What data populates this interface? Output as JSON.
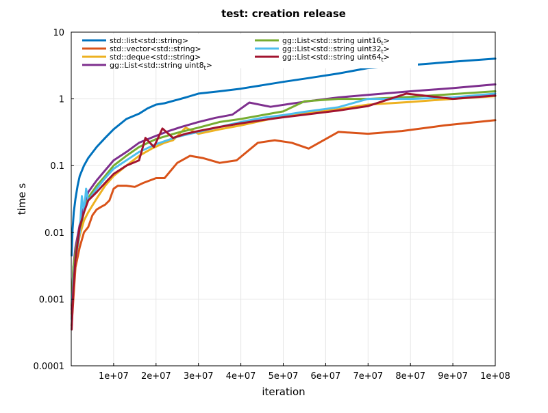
{
  "chart_data": {
    "type": "line",
    "title": "test: creation release",
    "xlabel": "iteration",
    "ylabel": "time s",
    "xlim": [
      0,
      100000000
    ],
    "ylim": [
      0.0001,
      10
    ],
    "yscale": "log",
    "grid": true,
    "legend_position": "top-left",
    "x_ticks": [
      10000000,
      20000000,
      30000000,
      40000000,
      50000000,
      60000000,
      70000000,
      80000000,
      90000000,
      100000000
    ],
    "x_tick_labels": [
      "1e+07",
      "2e+07",
      "3e+07",
      "4e+07",
      "5e+07",
      "6e+07",
      "7e+07",
      "8e+07",
      "9e+07",
      "1e+08"
    ],
    "y_ticks": [
      0.0001,
      0.001,
      0.01,
      0.1,
      1,
      10
    ],
    "y_tick_labels": [
      "0.0001",
      "0.001",
      "0.01",
      "0.1",
      "1",
      "10"
    ],
    "series": [
      {
        "name": "std::list<std::string>",
        "legend_main": "std::list<std::string>",
        "legend_sub": "",
        "legend_tail": "",
        "color": "#0072bd",
        "x": [
          100000,
          300000,
          600000,
          1000000,
          1500000,
          2000000,
          3000000,
          4000000,
          6000000,
          8000000,
          10000000,
          13000000,
          16000000,
          18000000,
          20000000,
          22000000,
          25000000,
          27000000,
          30000000,
          35000000,
          40000000,
          45000000,
          50000000,
          56000000,
          63000000,
          70000000,
          80000000,
          90000000,
          100000000
        ],
        "y": [
          0.0045,
          0.011,
          0.02,
          0.032,
          0.05,
          0.07,
          0.1,
          0.13,
          0.19,
          0.26,
          0.35,
          0.5,
          0.6,
          0.72,
          0.82,
          0.86,
          0.97,
          1.05,
          1.2,
          1.3,
          1.42,
          1.6,
          1.8,
          2.05,
          2.4,
          2.9,
          3.2,
          3.6,
          4.0
        ]
      },
      {
        "name": "std::vector<std::string>",
        "legend_main": "std::vector<std::string>",
        "legend_sub": "",
        "legend_tail": "",
        "color": "#d95319",
        "x": [
          100000,
          500000,
          1000000,
          2000000,
          3000000,
          4000000,
          5000000,
          6000000,
          7000000,
          8000000,
          9000000,
          10000000,
          11000000,
          13000000,
          15000000,
          17000000,
          20000000,
          22000000,
          25000000,
          28000000,
          31000000,
          35000000,
          39000000,
          44000000,
          48000000,
          52000000,
          56000000,
          63000000,
          70000000,
          78000000,
          88000000,
          100000000
        ],
        "y": [
          0.0004,
          0.001,
          0.003,
          0.006,
          0.01,
          0.012,
          0.018,
          0.022,
          0.024,
          0.026,
          0.03,
          0.045,
          0.05,
          0.05,
          0.048,
          0.055,
          0.065,
          0.065,
          0.11,
          0.14,
          0.13,
          0.11,
          0.12,
          0.22,
          0.24,
          0.22,
          0.18,
          0.32,
          0.3,
          0.33,
          0.4,
          0.48
        ]
      },
      {
        "name": "std::deque<std::string>",
        "legend_main": "std::deque<std::string>",
        "legend_sub": "",
        "legend_tail": "",
        "color": "#edb120",
        "x": [
          100000,
          500000,
          1000000,
          2000000,
          3000000,
          4000000,
          6000000,
          8000000,
          10000000,
          13000000,
          16000000,
          19000000,
          22000000,
          24000000,
          27000000,
          30000000,
          35000000,
          40000000,
          45000000,
          50000000,
          55000000,
          63000000,
          70000000,
          80000000,
          90000000,
          100000000
        ],
        "y": [
          0.0006,
          0.002,
          0.004,
          0.009,
          0.015,
          0.02,
          0.032,
          0.05,
          0.07,
          0.1,
          0.14,
          0.18,
          0.22,
          0.24,
          0.37,
          0.3,
          0.35,
          0.4,
          0.47,
          0.55,
          0.6,
          0.7,
          0.82,
          0.9,
          1.0,
          1.1
        ]
      },
      {
        "name": "gg::List<std::string uint8_t>",
        "legend_main": "gg::List<std::string uint8",
        "legend_sub": "t",
        "legend_tail": ">",
        "color": "#7e2f8e",
        "x": [
          100000,
          500000,
          1000000,
          2000000,
          3000000,
          4000000,
          6000000,
          8000000,
          10000000,
          13000000,
          16000000,
          20000000,
          23000000,
          26000000,
          30000000,
          34000000,
          38000000,
          42000000,
          47000000,
          52000000,
          58000000,
          63000000,
          70000000,
          80000000,
          90000000,
          100000000
        ],
        "y": [
          0.0007,
          0.003,
          0.006,
          0.013,
          0.025,
          0.04,
          0.06,
          0.085,
          0.12,
          0.16,
          0.22,
          0.28,
          0.33,
          0.38,
          0.45,
          0.52,
          0.58,
          0.88,
          0.76,
          0.85,
          0.96,
          1.05,
          1.15,
          1.3,
          1.45,
          1.65
        ]
      },
      {
        "name": "gg::List<std::string uint16_t>",
        "legend_main": "gg::List<std::string uint16",
        "legend_sub": "t",
        "legend_tail": ">",
        "color": "#77ac30",
        "x": [
          100000,
          500000,
          1000000,
          2000000,
          3000000,
          4000000,
          6000000,
          8000000,
          10000000,
          13000000,
          16000000,
          20000000,
          25000000,
          30000000,
          35000000,
          40000000,
          45000000,
          50000000,
          55000000,
          63000000,
          70000000,
          80000000,
          90000000,
          100000000
        ],
        "y": [
          0.0008,
          0.003,
          0.005,
          0.011,
          0.02,
          0.033,
          0.05,
          0.07,
          0.1,
          0.14,
          0.19,
          0.25,
          0.31,
          0.37,
          0.45,
          0.5,
          0.57,
          0.65,
          0.92,
          1.0,
          1.0,
          1.07,
          1.18,
          1.3
        ]
      },
      {
        "name": "gg::List<std::string uint32_t>",
        "legend_main": "gg::List<std::string uint32",
        "legend_sub": "t",
        "legend_tail": ">",
        "color": "#4dbeee",
        "x": [
          100000,
          500000,
          1000000,
          2000000,
          2500000,
          3000000,
          3500000,
          4000000,
          6000000,
          8000000,
          10000000,
          13000000,
          16000000,
          20000000,
          25000000,
          30000000,
          35000000,
          40000000,
          45000000,
          50000000,
          55000000,
          63000000,
          70000000,
          80000000,
          90000000,
          100000000
        ],
        "y": [
          0.0005,
          0.002,
          0.004,
          0.01,
          0.035,
          0.02,
          0.045,
          0.03,
          0.045,
          0.065,
          0.09,
          0.12,
          0.16,
          0.21,
          0.27,
          0.32,
          0.38,
          0.45,
          0.52,
          0.57,
          0.64,
          0.75,
          1.0,
          1.0,
          1.05,
          1.2
        ]
      },
      {
        "name": "gg::List<std::string uint64_t>",
        "legend_main": "gg::List<std::string uint64",
        "legend_sub": "t",
        "legend_tail": ">",
        "color": "#a2142f",
        "x": [
          100000,
          500000,
          1000000,
          2000000,
          3000000,
          4000000,
          6000000,
          8000000,
          10000000,
          13000000,
          16000000,
          17500000,
          19500000,
          21500000,
          24000000,
          27000000,
          30000000,
          35000000,
          40000000,
          45000000,
          50000000,
          55000000,
          63000000,
          70000000,
          79000000,
          90000000,
          100000000
        ],
        "y": [
          0.00035,
          0.0015,
          0.004,
          0.012,
          0.02,
          0.03,
          0.04,
          0.055,
          0.075,
          0.1,
          0.12,
          0.26,
          0.19,
          0.36,
          0.26,
          0.3,
          0.33,
          0.38,
          0.43,
          0.48,
          0.53,
          0.58,
          0.67,
          0.78,
          1.2,
          1.0,
          1.12
        ]
      }
    ]
  }
}
